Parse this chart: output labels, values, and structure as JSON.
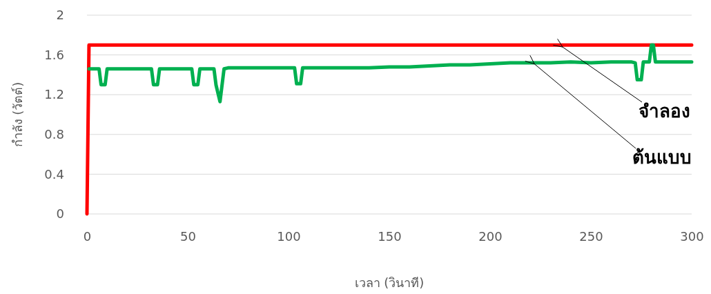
{
  "chart_data": {
    "type": "line",
    "xlabel": "เวลา (วินาที)",
    "ylabel": "กำลัง (วัตต์)",
    "xlim": [
      0,
      300
    ],
    "ylim": [
      0,
      2
    ],
    "xticks": [
      0,
      50,
      100,
      150,
      200,
      250,
      300
    ],
    "yticks": [
      0,
      {
        "value": 0.4,
        "label": "0.4"
      },
      {
        "value": 0.8,
        "label": "0.8"
      },
      {
        "value": 1.2,
        "label": "1.2"
      },
      {
        "value": 1.6,
        "label": "1.6"
      },
      2
    ],
    "grid": "y",
    "series": [
      {
        "color": "#ff0000",
        "x": [
          0,
          1,
          300
        ],
        "values": [
          0,
          1.7,
          1.7
        ]
      },
      {
        "color": "#00b050",
        "x": [
          1,
          6,
          7,
          9,
          10,
          12,
          32,
          33,
          35,
          36,
          52,
          53,
          55,
          56,
          63,
          64,
          66,
          68,
          70,
          103,
          104,
          106,
          107,
          140,
          150,
          160,
          170,
          180,
          190,
          200,
          210,
          220,
          230,
          240,
          250,
          260,
          270,
          272,
          273,
          275,
          276,
          279,
          280,
          281,
          282,
          300
        ],
        "values": [
          1.46,
          1.46,
          1.3,
          1.3,
          1.46,
          1.46,
          1.46,
          1.3,
          1.3,
          1.46,
          1.46,
          1.3,
          1.3,
          1.46,
          1.46,
          1.3,
          1.13,
          1.46,
          1.47,
          1.47,
          1.31,
          1.31,
          1.47,
          1.47,
          1.48,
          1.48,
          1.49,
          1.5,
          1.5,
          1.51,
          1.52,
          1.52,
          1.52,
          1.53,
          1.52,
          1.53,
          1.53,
          1.52,
          1.35,
          1.35,
          1.53,
          1.53,
          1.7,
          1.7,
          1.53,
          1.53
        ]
      }
    ],
    "annotations": [
      {
        "text": "จำลอง",
        "x": 236,
        "y": 1.7
      },
      {
        "text": "ต้นแบบ",
        "x": 222,
        "y": 1.53
      }
    ]
  }
}
